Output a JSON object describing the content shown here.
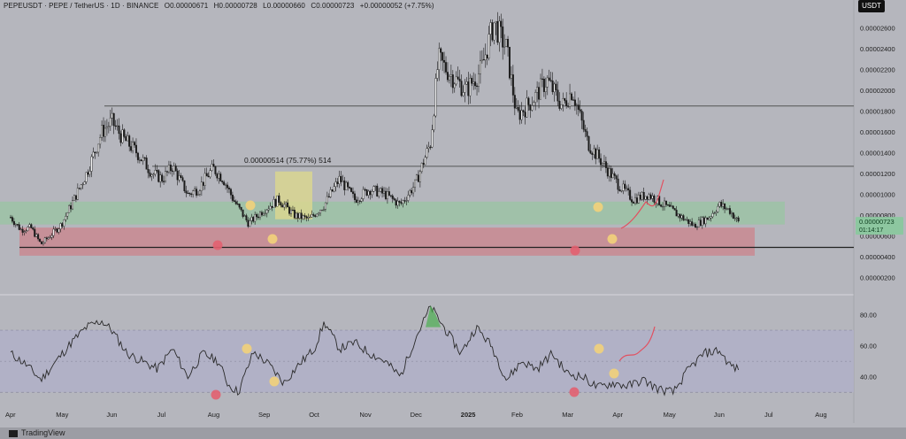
{
  "header": {
    "symbol": "PEPEUSDT · PEPE / TetherUS · 1D · BINANCE",
    "open": "O0.00000671",
    "high": "H0.00000728",
    "low": "L0.00000660",
    "close": "C0.00000723",
    "change": "+0.00000052 (+7.75%)"
  },
  "currency_badge": "USDT",
  "footer": {
    "brand": "TradingView"
  },
  "colors": {
    "background": "#b5b6bd",
    "candle": "#1b1b1b",
    "support_zone": "#c98a92",
    "range_zone": "#9cc3a6",
    "highlight_zone": "#d9d690",
    "rsi_band": "#b0b0c8",
    "projection": "#e25060",
    "marker_yellow": "#f2d27a",
    "marker_red": "#e26070"
  },
  "chart_data": [
    {
      "type": "candlestick",
      "title": "PEPEUSDT 1D",
      "x_ticks": [
        "Apr",
        "May",
        "Jun",
        "Jul",
        "Aug",
        "Sep",
        "Oct",
        "Nov",
        "Dec",
        "2025",
        "Feb",
        "Mar",
        "Apr",
        "May",
        "Jun",
        "Jul",
        "Aug"
      ],
      "y_ticks": [
        "0.00000200",
        "0.00000400",
        "0.00000600",
        "0.00000800",
        "0.00001000",
        "0.00001200",
        "0.00001400",
        "0.00001600",
        "0.00001800",
        "0.00002000",
        "0.00002200",
        "0.00002400",
        "0.00002600"
      ],
      "ylim": [
        6e-07,
        2.75e-05
      ],
      "close_series": [
        {
          "m": 0.0,
          "v": 7.8e-06
        },
        {
          "m": 0.2,
          "v": 6.6e-06
        },
        {
          "m": 0.4,
          "v": 6.8e-06
        },
        {
          "m": 0.6,
          "v": 5.2e-06
        },
        {
          "m": 0.8,
          "v": 6.1e-06
        },
        {
          "m": 1.0,
          "v": 7.1e-06
        },
        {
          "m": 1.2,
          "v": 9e-06
        },
        {
          "m": 1.5,
          "v": 1.2e-05
        },
        {
          "m": 1.8,
          "v": 1.6e-05
        },
        {
          "m": 2.0,
          "v": 1.7e-05
        },
        {
          "m": 2.2,
          "v": 1.55e-05
        },
        {
          "m": 2.5,
          "v": 1.4e-05
        },
        {
          "m": 2.8,
          "v": 1.2e-05
        },
        {
          "m": 3.0,
          "v": 1.15e-05
        },
        {
          "m": 3.2,
          "v": 1.27e-05
        },
        {
          "m": 3.5,
          "v": 1e-05
        },
        {
          "m": 3.7,
          "v": 1.05e-05
        },
        {
          "m": 4.0,
          "v": 1.25e-05
        },
        {
          "m": 4.2,
          "v": 1.15e-05
        },
        {
          "m": 4.4,
          "v": 9.5e-06
        },
        {
          "m": 4.7,
          "v": 7.2e-06
        },
        {
          "m": 5.0,
          "v": 8.5e-06
        },
        {
          "m": 5.3,
          "v": 9.5e-06
        },
        {
          "m": 5.6,
          "v": 8e-06
        },
        {
          "m": 5.9,
          "v": 7.6e-06
        },
        {
          "m": 6.2,
          "v": 9e-06
        },
        {
          "m": 6.5,
          "v": 1.15e-05
        },
        {
          "m": 6.8,
          "v": 9.5e-06
        },
        {
          "m": 7.1,
          "v": 1.05e-05
        },
        {
          "m": 7.4,
          "v": 1e-05
        },
        {
          "m": 7.7,
          "v": 9e-06
        },
        {
          "m": 8.0,
          "v": 1.1e-05
        },
        {
          "m": 8.3,
          "v": 1.5e-05
        },
        {
          "m": 8.45,
          "v": 2.3e-05
        },
        {
          "m": 8.7,
          "v": 2.15e-05
        },
        {
          "m": 9.0,
          "v": 2e-05
        },
        {
          "m": 9.3,
          "v": 2.2e-05
        },
        {
          "m": 9.55,
          "v": 2.65e-05
        },
        {
          "m": 9.8,
          "v": 2.4e-05
        },
        {
          "m": 10.0,
          "v": 1.75e-05
        },
        {
          "m": 10.3,
          "v": 1.9e-05
        },
        {
          "m": 10.6,
          "v": 2.1e-05
        },
        {
          "m": 10.9,
          "v": 1.85e-05
        },
        {
          "m": 11.1,
          "v": 2e-05
        },
        {
          "m": 11.4,
          "v": 1.5e-05
        },
        {
          "m": 11.7,
          "v": 1.3e-05
        },
        {
          "m": 12.0,
          "v": 1.1e-05
        },
        {
          "m": 12.3,
          "v": 9.5e-06
        },
        {
          "m": 12.6,
          "v": 1e-05
        },
        {
          "m": 12.9,
          "v": 9e-06
        },
        {
          "m": 13.2,
          "v": 8e-06
        },
        {
          "m": 13.5,
          "v": 7e-06
        },
        {
          "m": 13.8,
          "v": 7.8e-06
        },
        {
          "m": 14.0,
          "v": 9e-06
        },
        {
          "m": 14.2,
          "v": 8.5e-06
        },
        {
          "m": 14.4,
          "v": 7.2e-06
        }
      ],
      "horizontal_levels": [
        {
          "name": "resistance-high",
          "value": 1.85e-05
        },
        {
          "name": "resistance-mid",
          "value": 1.27e-05
        },
        {
          "name": "support-low",
          "value": 4.9e-06
        }
      ],
      "zones": [
        {
          "name": "range",
          "from": 7.1e-06,
          "to": 9.3e-06
        },
        {
          "name": "support",
          "from": 4.1e-06,
          "to": 6.8e-06
        }
      ],
      "measure_label": "0.00000514 (75.77%) 514",
      "price_label": "0.00000723",
      "countdown_label": "01:14:17"
    },
    {
      "type": "line",
      "title": "RSI",
      "y_ticks": [
        "40.00",
        "60.00",
        "80.00"
      ],
      "ylim": [
        25,
        90
      ],
      "band": [
        30,
        70
      ],
      "mid": 50,
      "series": [
        {
          "m": 0.0,
          "v": 55
        },
        {
          "m": 0.3,
          "v": 48
        },
        {
          "m": 0.6,
          "v": 38
        },
        {
          "m": 0.9,
          "v": 50
        },
        {
          "m": 1.2,
          "v": 62
        },
        {
          "m": 1.5,
          "v": 72
        },
        {
          "m": 1.8,
          "v": 76
        },
        {
          "m": 2.0,
          "v": 70
        },
        {
          "m": 2.3,
          "v": 55
        },
        {
          "m": 2.6,
          "v": 50
        },
        {
          "m": 2.9,
          "v": 45
        },
        {
          "m": 3.2,
          "v": 58
        },
        {
          "m": 3.5,
          "v": 40
        },
        {
          "m": 3.8,
          "v": 55
        },
        {
          "m": 4.1,
          "v": 50
        },
        {
          "m": 4.3,
          "v": 35
        },
        {
          "m": 4.5,
          "v": 30
        },
        {
          "m": 4.8,
          "v": 56
        },
        {
          "m": 5.1,
          "v": 48
        },
        {
          "m": 5.4,
          "v": 36
        },
        {
          "m": 5.7,
          "v": 48
        },
        {
          "m": 6.0,
          "v": 58
        },
        {
          "m": 6.2,
          "v": 75
        },
        {
          "m": 6.5,
          "v": 58
        },
        {
          "m": 6.8,
          "v": 62
        },
        {
          "m": 7.1,
          "v": 55
        },
        {
          "m": 7.4,
          "v": 50
        },
        {
          "m": 7.7,
          "v": 40
        },
        {
          "m": 8.0,
          "v": 65
        },
        {
          "m": 8.3,
          "v": 85
        },
        {
          "m": 8.6,
          "v": 70
        },
        {
          "m": 8.9,
          "v": 55
        },
        {
          "m": 9.2,
          "v": 72
        },
        {
          "m": 9.5,
          "v": 60
        },
        {
          "m": 9.8,
          "v": 38
        },
        {
          "m": 10.1,
          "v": 50
        },
        {
          "m": 10.4,
          "v": 45
        },
        {
          "m": 10.7,
          "v": 55
        },
        {
          "m": 11.0,
          "v": 42
        },
        {
          "m": 11.3,
          "v": 40
        },
        {
          "m": 11.6,
          "v": 33
        },
        {
          "m": 11.9,
          "v": 36
        },
        {
          "m": 12.2,
          "v": 34
        },
        {
          "m": 12.5,
          "v": 38
        },
        {
          "m": 12.8,
          "v": 32
        },
        {
          "m": 13.1,
          "v": 30
        },
        {
          "m": 13.4,
          "v": 45
        },
        {
          "m": 13.7,
          "v": 55
        },
        {
          "m": 14.0,
          "v": 57
        },
        {
          "m": 14.2,
          "v": 48
        },
        {
          "m": 14.4,
          "v": 44
        }
      ]
    }
  ]
}
